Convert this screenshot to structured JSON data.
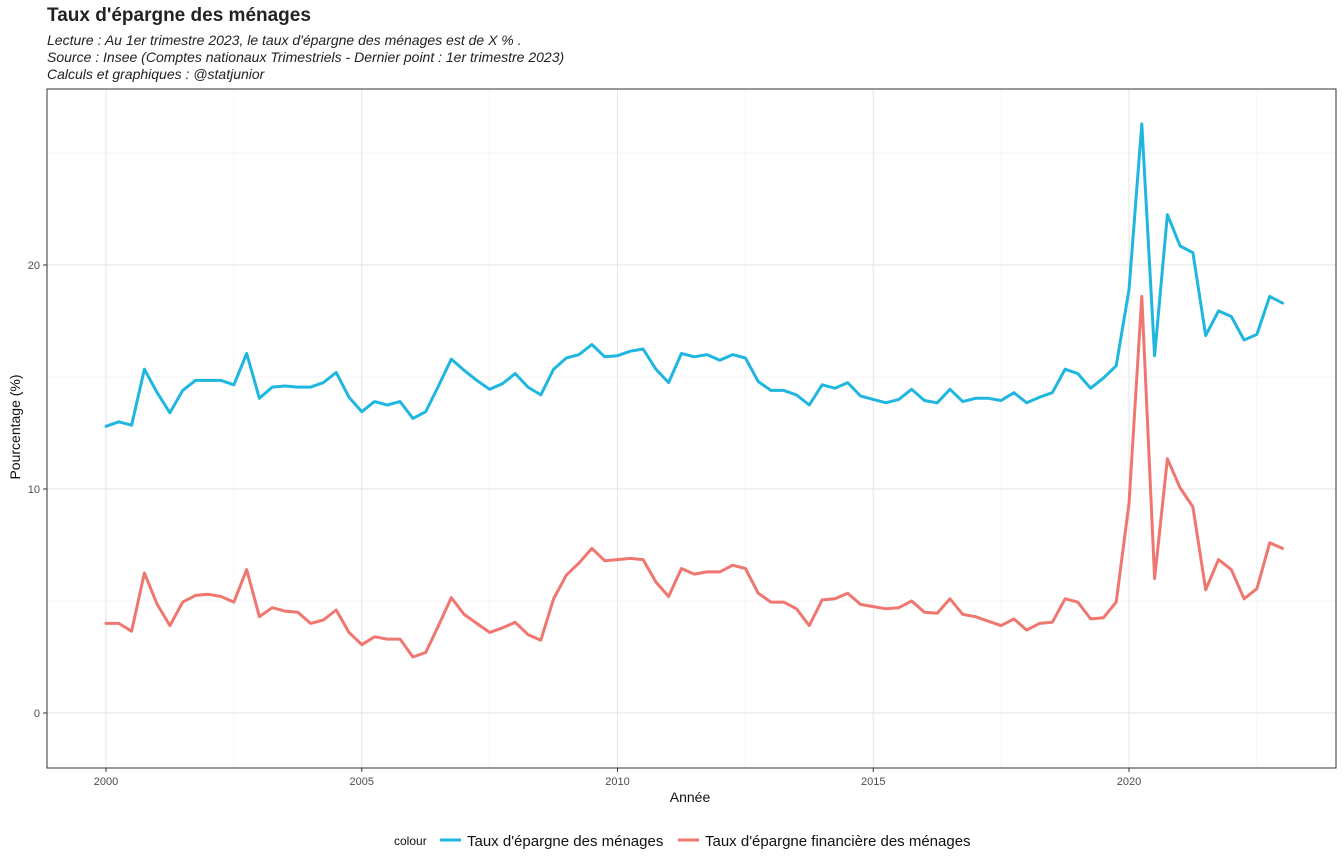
{
  "chart_data": {
    "type": "line",
    "title": "Taux d'épargne des ménages",
    "subtitles": [
      "Lecture : Au 1er trimestre 2023, le taux d'épargne des ménages est de X % .",
      "Source : Insee (Comptes nationaux Trimestriels - Dernier point : 1er trimestre 2023)",
      "Calculs et graphiques : @statjunior"
    ],
    "xlabel": "Année",
    "ylabel": "Pourcentage (%)",
    "xlim": [
      1999.05,
      2024.3
    ],
    "ylim": [
      -2.4,
      27.5
    ],
    "x_ticks": [
      2000,
      2005,
      2010,
      2015,
      2020
    ],
    "y_ticks": [
      0,
      10,
      20
    ],
    "grid": true,
    "legend_position": "bottom",
    "legend_title": "colour",
    "x_start": 2000.0,
    "x_step": 0.25,
    "series": [
      {
        "name": "Taux d'épargne des ménages",
        "color": "#1fb6e0",
        "values": [
          12.8,
          13.0,
          12.85,
          15.35,
          14.3,
          13.4,
          14.4,
          14.85,
          14.85,
          14.85,
          14.65,
          16.05,
          14.05,
          14.55,
          14.6,
          14.55,
          14.55,
          14.75,
          15.2,
          14.1,
          13.45,
          13.9,
          13.75,
          13.9,
          13.15,
          13.45,
          14.6,
          15.8,
          15.3,
          14.85,
          14.45,
          14.7,
          15.15,
          14.55,
          14.2,
          15.35,
          15.85,
          16.0,
          16.45,
          15.9,
          15.95,
          16.15,
          16.25,
          15.35,
          14.75,
          16.05,
          15.9,
          16.0,
          15.75,
          16.0,
          15.85,
          14.8,
          14.4,
          14.4,
          14.2,
          13.75,
          14.65,
          14.5,
          14.75,
          14.15,
          14.0,
          13.85,
          14.0,
          14.45,
          13.95,
          13.85,
          14.45,
          13.9,
          14.05,
          14.05,
          13.95,
          14.3,
          13.85,
          14.1,
          14.3,
          15.35,
          15.15,
          14.5,
          14.95,
          15.5,
          18.9,
          26.3,
          15.95,
          22.25,
          20.85,
          20.55,
          16.85,
          17.95,
          17.7,
          16.65,
          16.9,
          18.6,
          18.3
        ]
      },
      {
        "name": "Taux d'épargne financière des ménages",
        "color": "#f07670",
        "values": [
          4.0,
          4.0,
          3.65,
          6.25,
          4.85,
          3.9,
          4.95,
          5.25,
          5.3,
          5.2,
          4.95,
          6.4,
          4.3,
          4.7,
          4.55,
          4.5,
          4.0,
          4.15,
          4.6,
          3.6,
          3.05,
          3.4,
          3.3,
          3.3,
          2.5,
          2.7,
          3.9,
          5.15,
          4.4,
          4.0,
          3.6,
          3.8,
          4.05,
          3.5,
          3.25,
          5.1,
          6.15,
          6.7,
          7.35,
          6.8,
          6.85,
          6.9,
          6.85,
          5.85,
          5.2,
          6.45,
          6.2,
          6.3,
          6.3,
          6.6,
          6.45,
          5.35,
          4.95,
          4.95,
          4.65,
          3.9,
          5.05,
          5.1,
          5.35,
          4.85,
          4.75,
          4.65,
          4.7,
          5.0,
          4.5,
          4.45,
          5.1,
          4.4,
          4.3,
          4.1,
          3.9,
          4.2,
          3.7,
          4.0,
          4.05,
          5.1,
          4.95,
          4.2,
          4.25,
          4.95,
          9.35,
          18.6,
          6.0,
          11.35,
          10.05,
          9.2,
          5.5,
          6.85,
          6.4,
          5.1,
          5.55,
          7.6,
          7.35
        ]
      }
    ]
  }
}
